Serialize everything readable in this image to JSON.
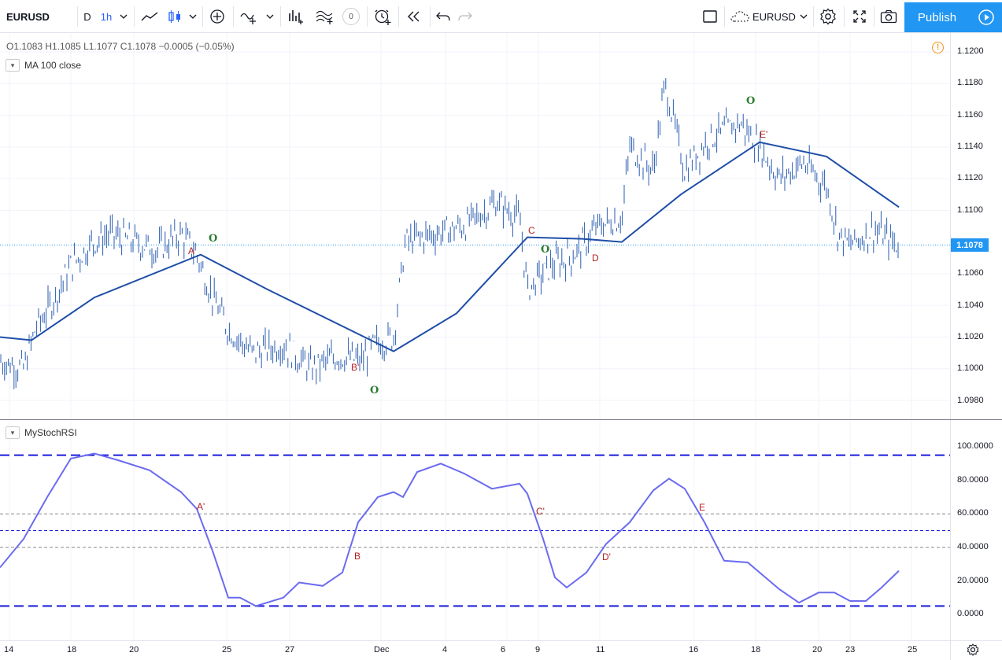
{
  "toolbar": {
    "symbol": "EURUSD",
    "interval_day": "D",
    "interval_active": "1h",
    "indicator_count": "0",
    "compare_symbol": "EURUSD",
    "publish_label": "Publish"
  },
  "legend": {
    "ohlc": "O1.1083  H1.1085  L1.1077  C1.1078  −0.0005 (−0.05%)",
    "ma": "MA 100 close",
    "stoch": "MyStochRSI"
  },
  "price_axis": {
    "labels": [
      "1.1200",
      "1.1180",
      "1.1160",
      "1.1140",
      "1.1120",
      "1.1100",
      "1.1060",
      "1.1040",
      "1.1020",
      "1.1000",
      "1.0980"
    ],
    "last_price": "1.1078"
  },
  "stoch_axis": {
    "labels": [
      "100.0000",
      "80.0000",
      "60.0000",
      "40.0000",
      "20.0000",
      "0.0000"
    ]
  },
  "time_axis": {
    "labels": [
      "14",
      "18",
      "20",
      "25",
      "27",
      "Dec",
      "4",
      "6",
      "9",
      "11",
      "16",
      "18",
      "20",
      "23",
      "25"
    ]
  },
  "annotations": {
    "price": {
      "A": "A",
      "Bp": "B'",
      "C": "C",
      "D": "D",
      "Ep": "E'",
      "o1": "O",
      "o2": "O",
      "o3": "O",
      "o4": "O"
    },
    "stoch": {
      "Ap": "A'",
      "B": "B",
      "Cp": "C'",
      "Dp": "D'",
      "E": "E"
    }
  },
  "colors": {
    "ma_line": "#1e4ea8",
    "candles": "#2a5db0",
    "stoch_line": "#6b6bf0",
    "dashed_levels": "#1a1adb",
    "accent": "#2196f3"
  },
  "chart_data": [
    {
      "type": "line",
      "title": "EURUSD 1h",
      "series": [
        {
          "name": "MA 100 close",
          "x": [
            "14",
            "18",
            "20",
            "25",
            "27",
            "Dec",
            "4",
            "6",
            "9",
            "11",
            "16",
            "18",
            "20",
            "23"
          ],
          "values": [
            1.102,
            1.1018,
            1.1045,
            1.1072,
            1.105,
            1.1011,
            1.1035,
            1.1083,
            1.1082,
            1.108,
            1.111,
            1.1143,
            1.1134,
            1.1102
          ]
        }
      ],
      "ylim": [
        1.0975,
        1.1205
      ],
      "last_close": 1.1078
    },
    {
      "type": "line",
      "title": "MyStochRSI",
      "series": [
        {
          "name": "MyStochRSI",
          "x": [
            "14",
            "18",
            "20",
            "25",
            "27",
            "Dec",
            "4",
            "6",
            "9",
            "11",
            "16",
            "18",
            "20",
            "23"
          ],
          "values": [
            28,
            95,
            90,
            10,
            18,
            65,
            90,
            78,
            18,
            45,
            80,
            32,
            8,
            26
          ]
        }
      ],
      "levels": [
        95,
        60,
        50,
        40,
        5
      ],
      "ylim": [
        0,
        100
      ]
    }
  ]
}
